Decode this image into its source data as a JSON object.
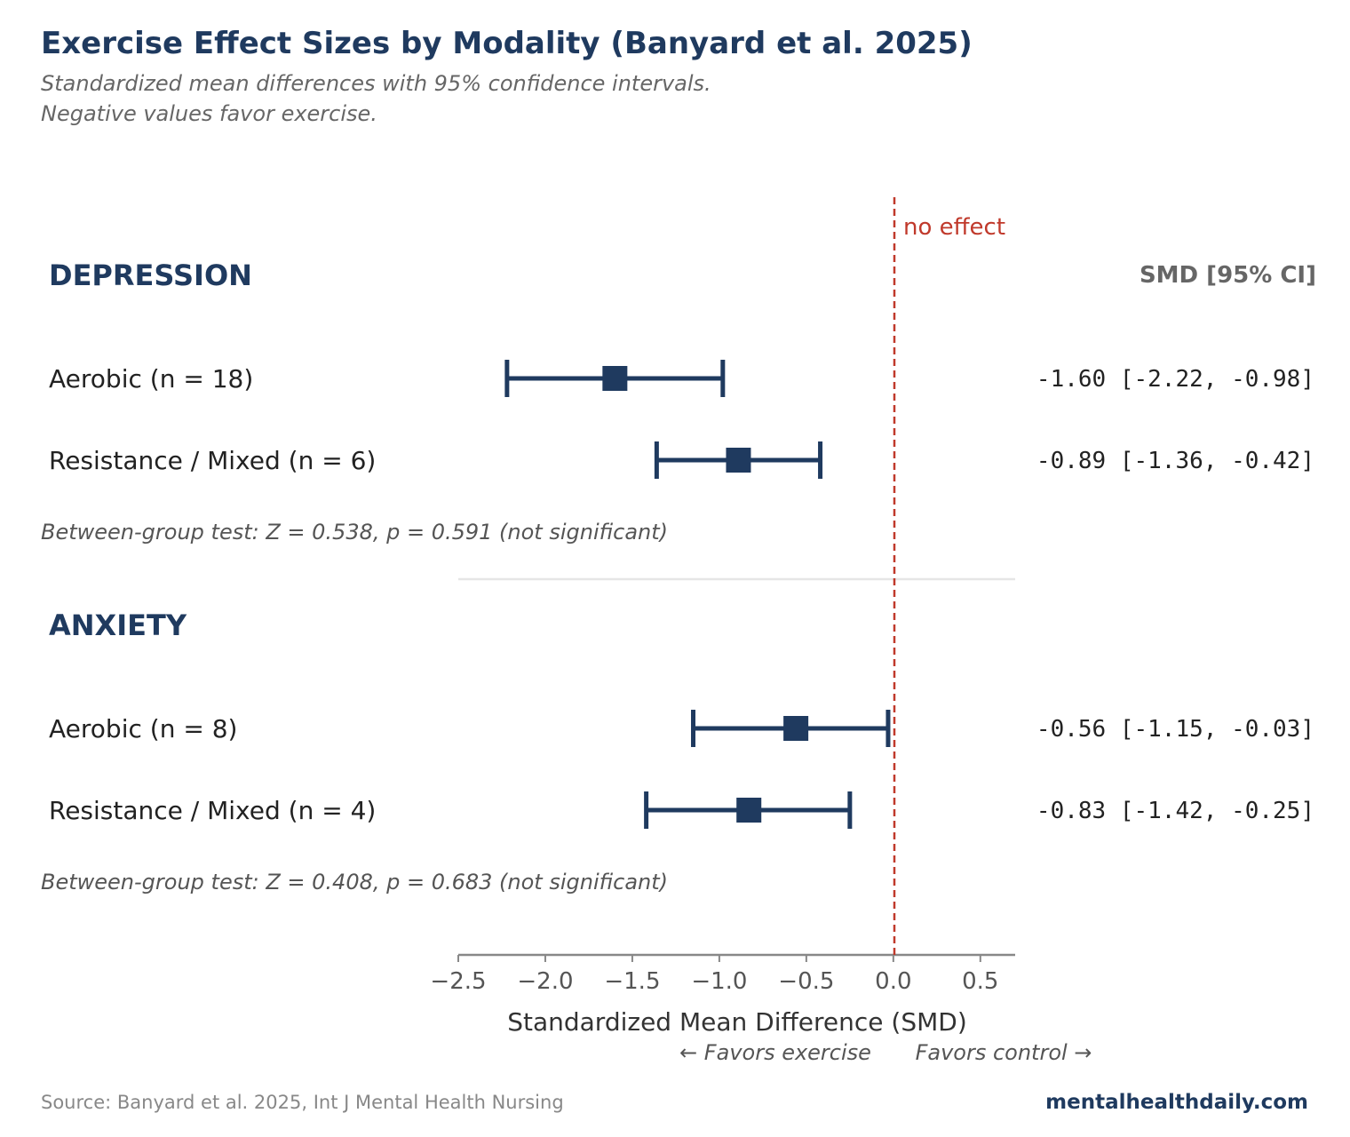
{
  "title": "Exercise Effect Sizes by Modality (Banyard et al. 2025)",
  "subtitle_lines": [
    "Standardized mean differences with 95% confidence intervals.",
    "Negative values favor exercise."
  ],
  "source": "Source: Banyard et al. 2025, Int J Mental Health Nursing",
  "brand": "mentalhealthdaily.com",
  "colors": {
    "primary": "#1f3a5f",
    "reference_line": "#c0392b",
    "muted": "#666666"
  },
  "chart_data": {
    "type": "forest",
    "xlabel": "Standardized Mean Difference (SMD)",
    "direction_left": "← Favors exercise",
    "direction_right": "Favors control →",
    "xlim": [
      -2.5,
      0.7
    ],
    "xticks": [
      -2.5,
      -2.0,
      -1.5,
      -1.0,
      -0.5,
      0.0,
      0.5
    ],
    "xtick_labels": [
      "−2.5",
      "−2.0",
      "−1.5",
      "−1.0",
      "−0.5",
      "0.0",
      "0.5"
    ],
    "reference_line": {
      "value": 0,
      "label": "no effect"
    },
    "column_header": "SMD [95% CI]",
    "grid": false,
    "groups": [
      {
        "name": "DEPRESSION",
        "rows": [
          {
            "label": "Aerobic  (n = 18)",
            "smd": -1.6,
            "lo": -2.22,
            "hi": -0.98,
            "text": "-1.60 [-2.22, -0.98]"
          },
          {
            "label": "Resistance / Mixed  (n = 6)",
            "smd": -0.89,
            "lo": -1.36,
            "hi": -0.42,
            "text": "-0.89 [-1.36, -0.42]"
          }
        ],
        "test": "Between-group test: Z = 0.538, p = 0.591 (not significant)"
      },
      {
        "name": "ANXIETY",
        "rows": [
          {
            "label": "Aerobic  (n = 8)",
            "smd": -0.56,
            "lo": -1.15,
            "hi": -0.03,
            "text": "-0.56 [-1.15, -0.03]"
          },
          {
            "label": "Resistance / Mixed  (n = 4)",
            "smd": -0.83,
            "lo": -1.42,
            "hi": -0.25,
            "text": "-0.83 [-1.42, -0.25]"
          }
        ],
        "test": "Between-group test: Z = 0.408, p = 0.683 (not significant)"
      }
    ]
  }
}
